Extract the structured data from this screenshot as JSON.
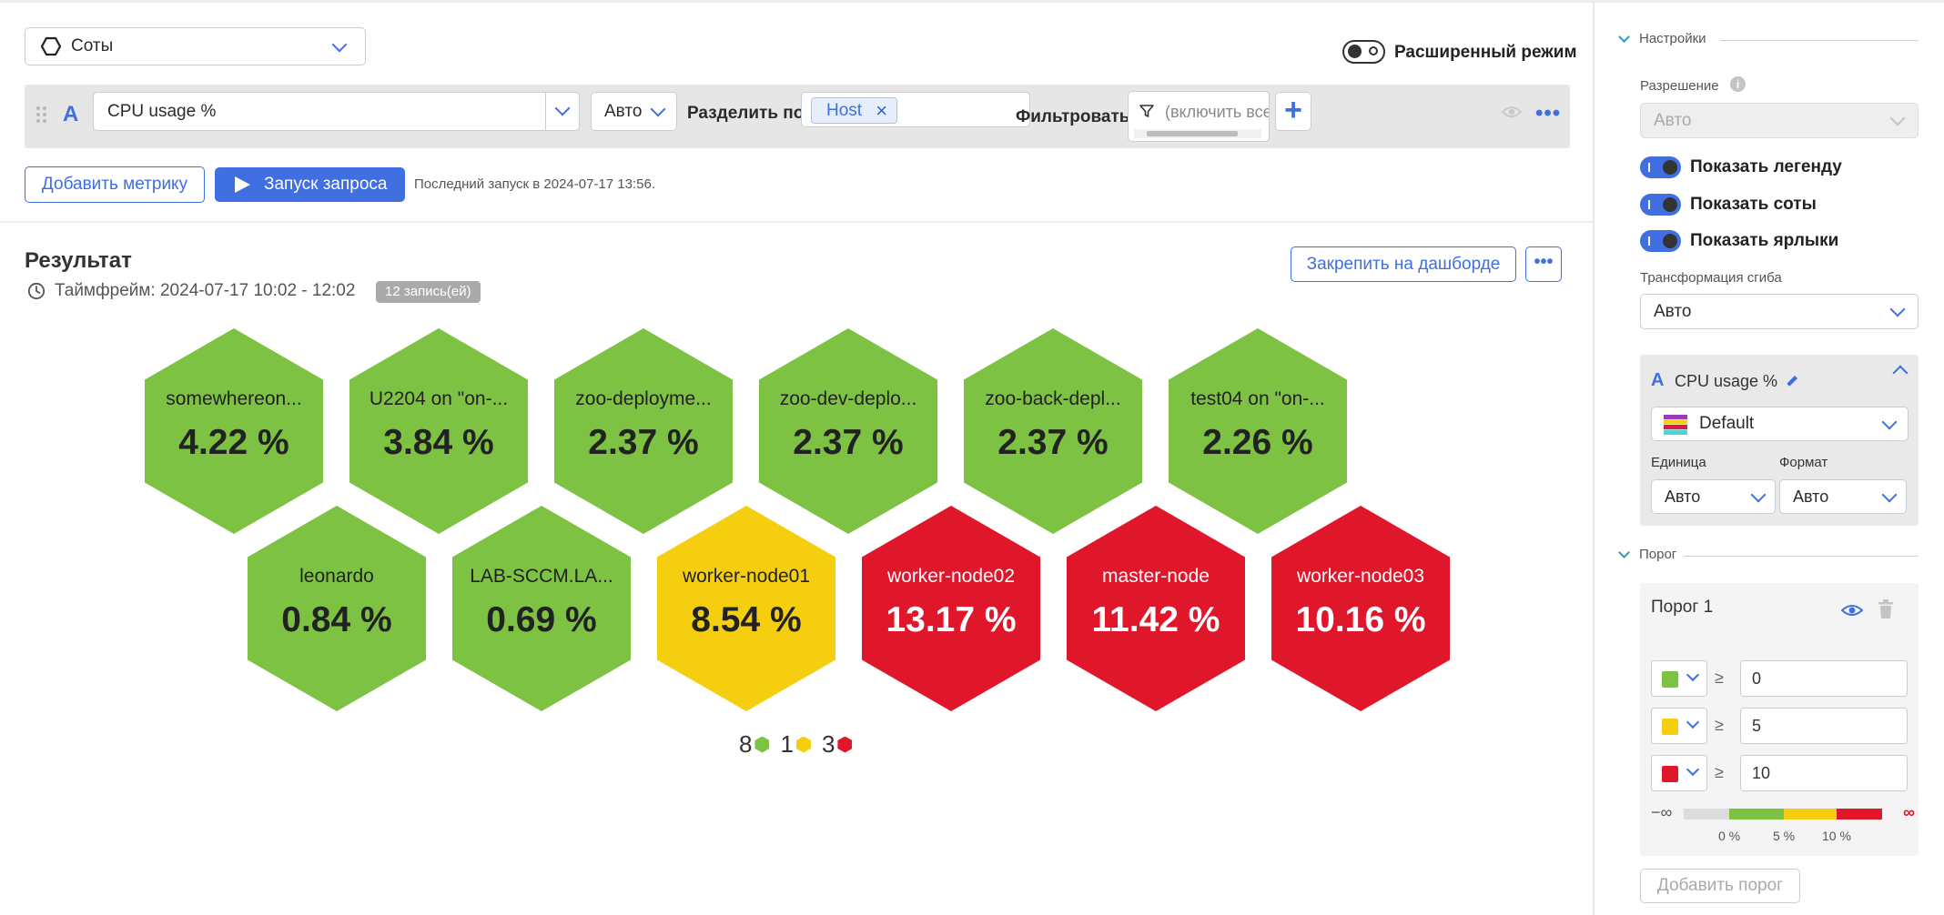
{
  "toolbar": {
    "viz_type": "Соты",
    "advanced_mode_label": "Расширенный режим",
    "advanced_mode_on": false
  },
  "query": {
    "letter": "A",
    "metric": "CPU usage %",
    "aggregation": "Авто",
    "split_label": "Разделить по",
    "split_chip": "Host",
    "filter_label": "Фильтровать",
    "filter_placeholder": "(включить все)",
    "add_filter_label": "+",
    "more_label": "•••"
  },
  "actions": {
    "add_metric": "Добавить метрику",
    "run_query": "Запуск запроса",
    "last_run": "Последний запуск в 2024-07-17 13:56."
  },
  "result": {
    "title": "Результат",
    "timeframe": "Таймфрейм: 2024-07-17 10:02 - 12:02",
    "records": "12 запись(ей)",
    "pin_button": "Закрепить на дашборде",
    "more_label": "•••"
  },
  "colors": {
    "green": "#7dc242",
    "yellow": "#f5cf0f",
    "red": "#e0162b",
    "accent": "#3f6fe0"
  },
  "hexagons": [
    {
      "name": "somewhereon...",
      "value": "4.22 %",
      "color": "green"
    },
    {
      "name": "U2204 on \"on-...",
      "value": "3.84 %",
      "color": "green"
    },
    {
      "name": "zoo-deployme...",
      "value": "2.37 %",
      "color": "green"
    },
    {
      "name": "zoo-dev-deplo...",
      "value": "2.37 %",
      "color": "green"
    },
    {
      "name": "zoo-back-depl...",
      "value": "2.37 %",
      "color": "green"
    },
    {
      "name": "test04 on \"on-...",
      "value": "2.26 %",
      "color": "green"
    },
    {
      "name": "leonardo",
      "value": "0.84 %",
      "color": "green"
    },
    {
      "name": "LAB-SCCM.LA...",
      "value": "0.69 %",
      "color": "green"
    },
    {
      "name": "worker-node01",
      "value": "8.54 %",
      "color": "yellow"
    },
    {
      "name": "worker-node02",
      "value": "13.17 %",
      "color": "red"
    },
    {
      "name": "master-node",
      "value": "11.42 %",
      "color": "red"
    },
    {
      "name": "worker-node03",
      "value": "10.16 %",
      "color": "red"
    }
  ],
  "legend": [
    {
      "count": "8",
      "color": "green"
    },
    {
      "count": "1",
      "color": "yellow"
    },
    {
      "count": "3",
      "color": "red"
    }
  ],
  "settings": {
    "section_title": "Настройки",
    "resolution_label": "Разрешение",
    "resolution_value": "Авто",
    "show_legend": "Показать легенду",
    "show_cells": "Показать соты",
    "show_labels": "Показать ярлыки",
    "bend_label": "Трансформация сгиба",
    "bend_value": "Авто",
    "metric_card": {
      "letter": "A",
      "name": "CPU usage %",
      "palette": "Default",
      "unit_label": "Единица",
      "unit_value": "Авто",
      "format_label": "Формат",
      "format_value": "Авто"
    }
  },
  "threshold": {
    "section_title": "Порог",
    "card_title": "Порог 1",
    "rows": [
      {
        "color": "green",
        "op": "≥",
        "value": "0"
      },
      {
        "color": "yellow",
        "op": "≥",
        "value": "5"
      },
      {
        "color": "red",
        "op": "≥",
        "value": "10"
      }
    ],
    "scale": {
      "neg_inf": "−∞",
      "pos_inf": "∞",
      "ticks": [
        "0 %",
        "5 %",
        "10 %"
      ]
    },
    "add_button": "Добавить порог"
  }
}
